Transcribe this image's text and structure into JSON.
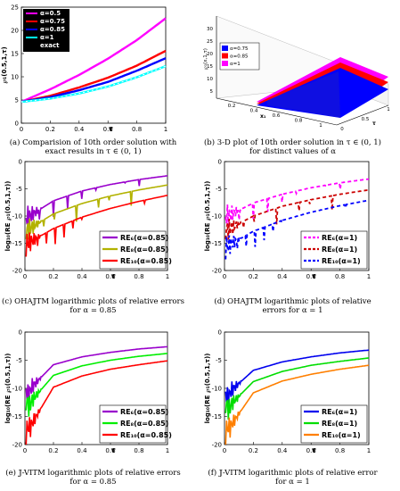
{
  "captions": {
    "a": "(a) Comparision of 10th order solution with exact results in τ ∈ (0, 1)",
    "b": "(b) 3-D plot of 10th order solution in τ ∈ (0, 1) for distinct values of α",
    "c": "(c) OHA𝕁TM logarithmic plots of relative errors for α = 0.85",
    "d": "(d) OHA𝕁TM logarithmic plots of relative errors for α = 1",
    "e": "(e) 𝕁-VITM logarithmic plots of relative errors for α = 0.85",
    "f": "(f) 𝕁-VITM logarithmic plots of relative error for α = 1"
  },
  "chart_data": [
    {
      "id": "a",
      "type": "line",
      "ylabel": "℘₁(0.5,1,τ)",
      "xlabel": "τ",
      "xlim": [
        0,
        1
      ],
      "ylim": [
        0,
        25
      ],
      "xticks": [
        "0",
        "0.2",
        "0.4",
        "0.6",
        "0.8",
        "1"
      ],
      "yticks": [
        "0",
        "5",
        "10",
        "15",
        "20",
        "25"
      ],
      "legend_position": "top-left",
      "series": [
        {
          "name": "α=0.5",
          "color": "#ff00ff",
          "x": [
            0,
            0.2,
            0.4,
            0.6,
            0.8,
            1
          ],
          "y": [
            4.6,
            7.3,
            10.4,
            13.9,
            17.9,
            22.6
          ]
        },
        {
          "name": "α=0.75",
          "color": "#ff0000",
          "x": [
            0,
            0.2,
            0.4,
            0.6,
            0.8,
            1
          ],
          "y": [
            4.6,
            5.9,
            7.7,
            9.8,
            12.4,
            15.6
          ]
        },
        {
          "name": "α=0.85",
          "color": "#0000ff",
          "x": [
            0,
            0.2,
            0.4,
            0.6,
            0.8,
            1
          ],
          "y": [
            4.6,
            5.6,
            7.1,
            8.9,
            11.3,
            14.0
          ]
        },
        {
          "name": "α=1",
          "color": "#00ffff",
          "x": [
            0,
            0.2,
            0.4,
            0.6,
            0.8,
            1
          ],
          "y": [
            4.6,
            5.3,
            6.4,
            7.9,
            9.9,
            12.3
          ]
        },
        {
          "name": "exact",
          "color": "#ffffff",
          "x": [
            0,
            0.2,
            0.4,
            0.6,
            0.8,
            1
          ],
          "y": [
            4.6,
            5.3,
            6.4,
            7.9,
            9.9,
            12.3
          ]
        }
      ]
    },
    {
      "id": "b",
      "type": "area",
      "zlabel": "℘₁(x,1,τ)",
      "xlabel": "x₁",
      "ylabel": "τ",
      "zticks": [
        "5",
        "10",
        "15",
        "20",
        "25",
        "30"
      ],
      "xticks": [
        "0.2",
        "0.4",
        "0.6",
        "0.8",
        "1"
      ],
      "yticks": [
        "0",
        "0.5",
        "1"
      ],
      "legend_position": "top-left",
      "series": [
        {
          "name": "α=0.75",
          "color": "#0000ff"
        },
        {
          "name": "α=0.85",
          "color": "#ff0000"
        },
        {
          "name": "α=1",
          "color": "#ff00ff"
        }
      ]
    },
    {
      "id": "c",
      "type": "line",
      "ylabel": "log₁₀(RE ℘₁(0.5,1,τ))",
      "xlabel": "τ",
      "xlim": [
        0,
        1
      ],
      "ylim": [
        -20,
        0
      ],
      "xticks": [
        "0",
        "0.2",
        "0.4",
        "0.6",
        "0.8",
        "1"
      ],
      "yticks": [
        "-20",
        "-15",
        "-10",
        "-5",
        "0"
      ],
      "legend_position": "bottom-right",
      "series": [
        {
          "name": "RE₆(α=0.85)",
          "color": "#9900cc",
          "x": [
            0.02,
            0.2,
            0.4,
            0.6,
            0.8,
            1
          ],
          "y": [
            -10.2,
            -7.2,
            -5.4,
            -4.2,
            -3.3,
            -2.6
          ]
        },
        {
          "name": "RE₈(α=0.85)",
          "color": "#b2b200",
          "x": [
            0.02,
            0.2,
            0.4,
            0.6,
            0.8,
            1
          ],
          "y": [
            -12.5,
            -9.6,
            -7.7,
            -6.3,
            -5.2,
            -4.3
          ]
        },
        {
          "name": "RE₁₀(α=0.85)",
          "color": "#ff0000",
          "x": [
            0.02,
            0.2,
            0.4,
            0.6,
            0.8,
            1
          ],
          "y": [
            -15.0,
            -12.3,
            -10.2,
            -8.6,
            -7.3,
            -6.2
          ]
        }
      ]
    },
    {
      "id": "d",
      "type": "line",
      "ylabel": "log₁₀(RE ℘₁(0.5,1,τ))",
      "xlabel": "τ",
      "xlim": [
        0,
        1
      ],
      "ylim": [
        -20,
        0
      ],
      "xticks": [
        "0",
        "0.2",
        "0.4",
        "0.6",
        "0.8",
        "1"
      ],
      "yticks": [
        "-20",
        "-15",
        "-10",
        "-5",
        "0"
      ],
      "legend_position": "bottom-right",
      "series": [
        {
          "name": "RE₆(α=1)",
          "color": "#ff00ff",
          "x": [
            0.02,
            0.2,
            0.4,
            0.6,
            0.8,
            1
          ],
          "y": [
            -10.0,
            -7.6,
            -6.0,
            -4.8,
            -3.9,
            -3.2
          ]
        },
        {
          "name": "RE₈(α=1)",
          "color": "#cc0000",
          "x": [
            0.02,
            0.2,
            0.4,
            0.6,
            0.8,
            1
          ],
          "y": [
            -12.5,
            -10.0,
            -8.2,
            -7.0,
            -6.0,
            -5.2
          ]
        },
        {
          "name": "RE₁₀(α=1)",
          "color": "#0000ff",
          "x": [
            0.02,
            0.2,
            0.4,
            0.6,
            0.8,
            1
          ],
          "y": [
            -15.5,
            -12.8,
            -10.8,
            -9.3,
            -8.1,
            -7.1
          ]
        }
      ]
    },
    {
      "id": "e",
      "type": "line",
      "ylabel": "log₁₀(RE ℘₁(0.5,1,τ))",
      "xlabel": "τ",
      "xlim": [
        0,
        1
      ],
      "ylim": [
        -20,
        0
      ],
      "xticks": [
        "0",
        "0.2",
        "0.4",
        "0.6",
        "0.8",
        "1"
      ],
      "yticks": [
        "-20",
        "-15",
        "-10",
        "-5",
        "0"
      ],
      "legend_position": "bottom-right",
      "series": [
        {
          "name": "RE₆(α=0.85)",
          "color": "#9900cc",
          "x": [
            0.02,
            0.2,
            0.4,
            0.6,
            0.8,
            1
          ],
          "y": [
            -10.5,
            -5.8,
            -4.4,
            -3.6,
            -3.0,
            -2.6
          ]
        },
        {
          "name": "RE₈(α=0.85)",
          "color": "#00ee00",
          "x": [
            0.02,
            0.2,
            0.4,
            0.6,
            0.8,
            1
          ],
          "y": [
            -13.0,
            -7.7,
            -6.0,
            -5.0,
            -4.3,
            -3.8
          ]
        },
        {
          "name": "RE₁₀(α=0.85)",
          "color": "#ff0000",
          "x": [
            0.02,
            0.2,
            0.4,
            0.6,
            0.8,
            1
          ],
          "y": [
            -17.5,
            -9.8,
            -7.8,
            -6.6,
            -5.8,
            -5.1
          ]
        }
      ]
    },
    {
      "id": "f",
      "type": "line",
      "ylabel": "log₁₀(RE ℘₁(0.5,1,τ))",
      "xlabel": "τ",
      "xlim": [
        0,
        1
      ],
      "ylim": [
        -20,
        0
      ],
      "xticks": [
        "0",
        "0.2",
        "0.4",
        "0.6",
        "0.8",
        "1"
      ],
      "yticks": [
        "-20",
        "-15",
        "-10",
        "-5",
        "0"
      ],
      "legend_position": "bottom-right",
      "series": [
        {
          "name": "RE₆(α=1)",
          "color": "#0000ee",
          "x": [
            0.02,
            0.2,
            0.4,
            0.6,
            0.8,
            1
          ],
          "y": [
            -11.0,
            -6.8,
            -5.3,
            -4.4,
            -3.7,
            -3.2
          ]
        },
        {
          "name": "RE₈(α=1)",
          "color": "#00dd00",
          "x": [
            0.02,
            0.2,
            0.4,
            0.6,
            0.8,
            1
          ],
          "y": [
            -13.5,
            -8.8,
            -7.0,
            -5.9,
            -5.2,
            -4.6
          ]
        },
        {
          "name": "RE₁₀(α=1)",
          "color": "#ff7f00",
          "x": [
            0.02,
            0.2,
            0.4,
            0.6,
            0.8,
            1
          ],
          "y": [
            -17.5,
            -10.8,
            -8.7,
            -7.5,
            -6.6,
            -5.9
          ]
        }
      ]
    }
  ]
}
